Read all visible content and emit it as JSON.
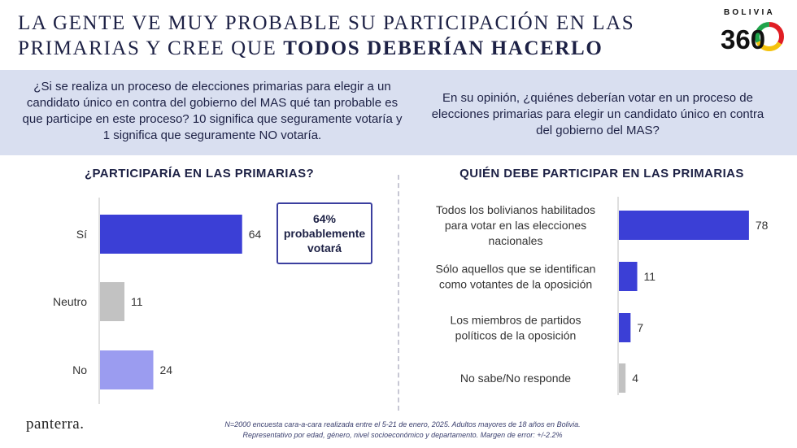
{
  "header": {
    "title_line1": "LA GENTE VE MUY PROBABLE SU PARTICIPACIÓN EN LAS",
    "title_line2_regular": "PRIMARIAS Y CREE QUE ",
    "title_line2_bold": "TODOS DEBERÍAN HACERLO",
    "logo_top": "BOLIVIA",
    "logo_number": "360"
  },
  "questions": {
    "left": "¿Si se realiza un proceso de elecciones primarias para elegir a un candidato único en contra del gobierno del MAS qué tan probable es que participe en este proceso? 10 significa que seguramente votaría y 1 significa que seguramente NO votaría.",
    "right": "En su opinión, ¿quiénes deberían votar en un proceso de elecciones primarias para elegir un candidato único en contra del gobierno del MAS?"
  },
  "callout": {
    "text": "64% probablemente votará"
  },
  "chart_data": [
    {
      "type": "bar",
      "orientation": "horizontal",
      "title": "¿PARTICIPARÍA EN LAS PRIMARIAS?",
      "categories": [
        "Sí",
        "Neutro",
        "No"
      ],
      "values": [
        64,
        11,
        24
      ],
      "colors": [
        "#3b3fd6",
        "#c2c2c2",
        "#9b9cf0"
      ],
      "xlim": [
        0,
        100
      ],
      "grid": false
    },
    {
      "type": "bar",
      "orientation": "horizontal",
      "title": "QUIÉN DEBE PARTICIPAR EN LAS PRIMARIAS",
      "categories": [
        "Todos los bolivianos habilitados para votar en las elecciones nacionales",
        "Sólo aquellos que se identifican como votantes de la oposición",
        "Los miembros de partidos políticos de la oposición",
        "No sabe/No responde"
      ],
      "category_lines": [
        [
          "Todos los bolivianos habilitados",
          "para votar en las elecciones",
          "nacionales"
        ],
        [
          "Sólo aquellos que se identifican",
          "como votantes de la oposición"
        ],
        [
          "Los miembros de partidos",
          "políticos de la oposición"
        ],
        [
          "No sabe/No responde"
        ]
      ],
      "values": [
        78,
        11,
        7,
        4
      ],
      "colors": [
        "#3b3fd6",
        "#3b3fd6",
        "#3b3fd6",
        "#c2c2c2"
      ],
      "xlim": [
        0,
        100
      ],
      "grid": false
    }
  ],
  "footer": {
    "brand": "panterra.",
    "note_line1": "N=2000 encuesta cara-a-cara realizada entre el 5-21 de enero, 2025. Adultos mayores de 18 años en Bolivia.",
    "note_line2": "Representativo por edad, género, nivel socioeconómico y departamento. Margen de error: +/-2.2%"
  }
}
